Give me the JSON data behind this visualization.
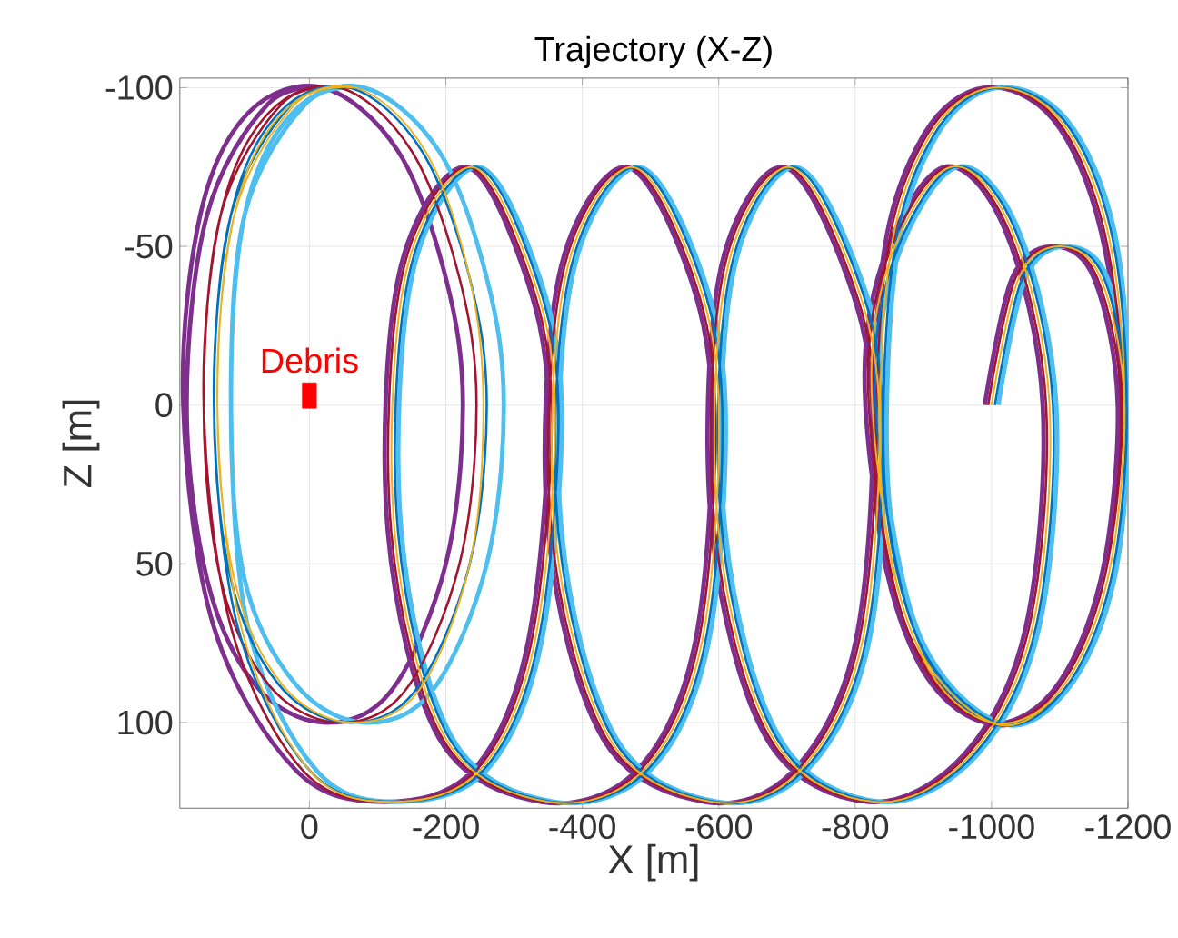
{
  "chart_data": {
    "type": "line",
    "title": "Trajectory (X-Z)",
    "xlabel": "X [m]",
    "ylabel": "Z [m]",
    "xlim": [
      190,
      -1200
    ],
    "xticks": [
      0,
      -200,
      -400,
      -600,
      -800,
      -1000,
      -1200
    ],
    "ylim": [
      127,
      -103
    ],
    "yticks": [
      -100,
      -50,
      0,
      50,
      100
    ],
    "grid": true,
    "marker": "none",
    "line_style": "solid",
    "series": [
      {
        "color": "#7e2f8e",
        "x": [
          -990,
          -1030,
          -1090,
          -1150,
          -1185,
          -1160,
          -1090,
          -990,
          -890,
          -830,
          -840,
          -900,
          -990,
          -1090,
          -1160,
          -1190,
          -1160,
          -1090,
          -990,
          -870,
          -815,
          -840,
          -930,
          -1020,
          -1075,
          -1050,
          -960,
          -820,
          -670,
          -590,
          -600,
          -690,
          -780,
          -825,
          -800,
          -710,
          -580,
          -430,
          -350,
          -365,
          -460,
          -550,
          -590,
          -565,
          -480,
          -340,
          -190,
          -115,
          -130,
          -225,
          -310,
          -350,
          -320,
          -240,
          -110,
          20,
          140,
          185,
          160,
          90,
          -20,
          -130,
          -200,
          -225,
          -200,
          -120,
          -20,
          80,
          150,
          180,
          150,
          60,
          -30
        ],
        "values": [
          0,
          -40,
          -50,
          -40,
          0,
          55,
          90,
          100,
          80,
          30,
          -45,
          -85,
          -100,
          -90,
          -55,
          0,
          55,
          90,
          100,
          70,
          0,
          -45,
          -75,
          -55,
          0,
          70,
          110,
          125,
          105,
          40,
          -40,
          -75,
          -45,
          0,
          75,
          115,
          125,
          105,
          40,
          -40,
          -75,
          -45,
          0,
          75,
          115,
          125,
          105,
          40,
          -40,
          -75,
          -45,
          0,
          75,
          115,
          125,
          115,
          70,
          0,
          -60,
          -92,
          -100,
          -80,
          -40,
          0,
          50,
          90,
          100,
          88,
          55,
          0,
          -60,
          -95,
          -100
        ]
      },
      {
        "color": "#4dbeee",
        "x": [
          -1010,
          -1050,
          -1110,
          -1170,
          -1199,
          -1180,
          -1110,
          -1010,
          -910,
          -850,
          -860,
          -920,
          -1010,
          -1110,
          -1180,
          -1200,
          -1180,
          -1110,
          -1010,
          -890,
          -835,
          -860,
          -950,
          -1040,
          -1095,
          -1070,
          -980,
          -840,
          -690,
          -610,
          -620,
          -710,
          -800,
          -845,
          -820,
          -730,
          -600,
          -450,
          -370,
          -385,
          -480,
          -570,
          -610,
          -585,
          -500,
          -360,
          -210,
          -135,
          -150,
          -245,
          -330,
          -370,
          -340,
          -260,
          -130,
          -10,
          90,
          115,
          95,
          25,
          -80,
          -190,
          -260,
          -285,
          -260,
          -180,
          -80,
          20,
          95,
          115,
          95,
          5,
          -80
        ],
        "values": [
          0,
          -40,
          -50,
          -40,
          0,
          55,
          90,
          100,
          80,
          30,
          -45,
          -85,
          -100,
          -90,
          -55,
          0,
          55,
          90,
          100,
          70,
          0,
          -45,
          -75,
          -55,
          0,
          70,
          110,
          125,
          105,
          40,
          -40,
          -75,
          -45,
          0,
          75,
          115,
          125,
          105,
          40,
          -40,
          -75,
          -45,
          0,
          75,
          115,
          125,
          105,
          40,
          -40,
          -75,
          -45,
          0,
          75,
          115,
          125,
          115,
          70,
          0,
          -60,
          -92,
          -100,
          -80,
          -40,
          0,
          50,
          90,
          100,
          88,
          55,
          0,
          -60,
          -95,
          -100
        ]
      },
      {
        "color": "#a2142f",
        "x": [
          -995,
          -1035,
          -1095,
          -1155,
          -1190,
          -1165,
          -1095,
          -995,
          -895,
          -835,
          -845,
          -905,
          -995,
          -1095,
          -1165,
          -1192,
          -1165,
          -1095,
          -995,
          -875,
          -820,
          -845,
          -935,
          -1025,
          -1080,
          -1055,
          -965,
          -825,
          -675,
          -595,
          -605,
          -695,
          -785,
          -830,
          -805,
          -715,
          -585,
          -435,
          -355,
          -370,
          -465,
          -555,
          -595,
          -570,
          -485,
          -345,
          -195,
          -120,
          -135,
          -230,
          -315,
          -355,
          -325,
          -245,
          -115,
          10,
          115,
          155,
          130,
          60,
          -45,
          -150,
          -220,
          -245,
          -220,
          -140,
          -40,
          60,
          130,
          155,
          130,
          40,
          -45
        ],
        "values": [
          0,
          -40,
          -50,
          -40,
          0,
          55,
          90,
          100,
          80,
          30,
          -45,
          -85,
          -100,
          -90,
          -55,
          0,
          55,
          90,
          100,
          70,
          0,
          -45,
          -75,
          -55,
          0,
          70,
          110,
          125,
          105,
          40,
          -40,
          -75,
          -45,
          0,
          75,
          115,
          125,
          105,
          40,
          -40,
          -75,
          -45,
          0,
          75,
          115,
          125,
          105,
          40,
          -40,
          -75,
          -45,
          0,
          75,
          115,
          125,
          115,
          70,
          0,
          -60,
          -92,
          -100,
          -80,
          -40,
          0,
          50,
          90,
          100,
          88,
          55,
          0,
          -60,
          -95,
          -100
        ]
      },
      {
        "color": "#0072bd",
        "x": [
          -1005,
          -1045,
          -1105,
          -1165,
          -1198,
          -1175,
          -1105,
          -1005,
          -905,
          -845,
          -855,
          -915,
          -1005,
          -1105,
          -1175,
          -1198,
          -1175,
          -1105,
          -1005,
          -885,
          -830,
          -855,
          -945,
          -1035,
          -1090,
          -1065,
          -975,
          -835,
          -685,
          -605,
          -615,
          -705,
          -795,
          -840,
          -815,
          -725,
          -595,
          -445,
          -365,
          -380,
          -475,
          -565,
          -605,
          -580,
          -495,
          -355,
          -205,
          -130,
          -145,
          -240,
          -325,
          -365,
          -335,
          -255,
          -125,
          0,
          105,
          140,
          115,
          45,
          -60,
          -165,
          -235,
          -260,
          -235,
          -155,
          -55,
          45,
          115,
          140,
          115,
          25,
          -60
        ],
        "values": [
          0,
          -40,
          -50,
          -40,
          0,
          55,
          90,
          100,
          80,
          30,
          -45,
          -85,
          -100,
          -90,
          -55,
          0,
          55,
          90,
          100,
          70,
          0,
          -45,
          -75,
          -55,
          0,
          70,
          110,
          125,
          105,
          40,
          -40,
          -75,
          -45,
          0,
          75,
          115,
          125,
          105,
          40,
          -40,
          -75,
          -45,
          0,
          75,
          115,
          125,
          105,
          40,
          -40,
          -75,
          -45,
          0,
          75,
          115,
          125,
          115,
          70,
          0,
          -60,
          -92,
          -100,
          -80,
          -40,
          0,
          50,
          90,
          100,
          88,
          55,
          0,
          -60,
          -95,
          -100
        ]
      },
      {
        "color": "#edb120",
        "x": [
          -1000,
          -1040,
          -1100,
          -1160,
          -1195,
          -1170,
          -1100,
          -1000,
          -900,
          -840,
          -850,
          -910,
          -1000,
          -1100,
          -1170,
          -1195,
          -1170,
          -1100,
          -1000,
          -880,
          -825,
          -850,
          -940,
          -1030,
          -1085,
          -1060,
          -970,
          -830,
          -680,
          -600,
          -610,
          -700,
          -790,
          -835,
          -810,
          -720,
          -590,
          -440,
          -360,
          -375,
          -470,
          -560,
          -600,
          -575,
          -490,
          -350,
          -200,
          -125,
          -140,
          -235,
          -320,
          -360,
          -330,
          -250,
          -120,
          0,
          100,
          135,
          110,
          40,
          -67,
          -170,
          -235,
          -255,
          -235,
          -160,
          -60,
          40,
          110,
          135,
          110,
          20,
          -67
        ],
        "values": [
          0,
          -40,
          -50,
          -40,
          0,
          55,
          90,
          100,
          80,
          30,
          -45,
          -85,
          -100,
          -90,
          -55,
          0,
          55,
          90,
          100,
          70,
          0,
          -45,
          -75,
          -55,
          0,
          70,
          110,
          125,
          105,
          40,
          -40,
          -75,
          -45,
          0,
          75,
          115,
          125,
          105,
          40,
          -40,
          -75,
          -45,
          0,
          75,
          115,
          125,
          105,
          40,
          -40,
          -75,
          -45,
          0,
          75,
          115,
          125,
          115,
          70,
          0,
          -60,
          -92,
          -100,
          -80,
          -40,
          0,
          50,
          90,
          100,
          88,
          55,
          0,
          -60,
          -95,
          -100
        ]
      },
      {
        "name": "Debris",
        "type": "scatter",
        "marker": "square",
        "color": "#ff0000",
        "x": [
          0
        ],
        "values": [
          -3
        ]
      }
    ]
  }
}
